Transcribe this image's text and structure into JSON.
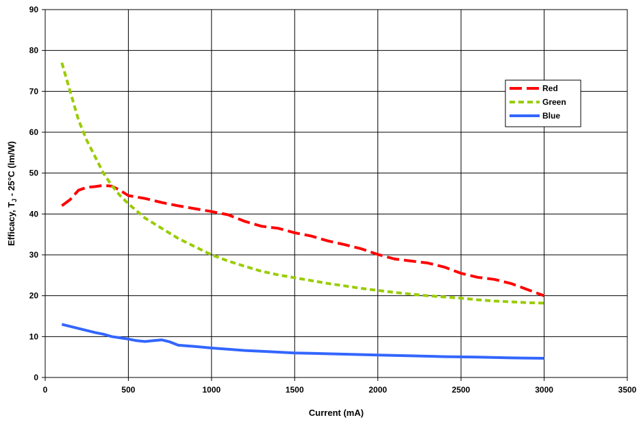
{
  "chart_data": {
    "type": "line",
    "xlabel": "Current (mA)",
    "ylabel_main": "Efficacy, T",
    "ylabel_sub": "J",
    "ylabel_tail": " - 25°C (lm/W)",
    "xlim": [
      0,
      3500
    ],
    "ylim": [
      0,
      90
    ],
    "xticks": [
      0,
      500,
      1000,
      1500,
      2000,
      2500,
      3000,
      3500
    ],
    "yticks": [
      0,
      10,
      20,
      30,
      40,
      50,
      60,
      70,
      80,
      90
    ],
    "grid": true,
    "legend_position": "right",
    "series": [
      {
        "name": "Red",
        "color": "#ff0000",
        "style": "dash",
        "x": [
          100,
          150,
          200,
          250,
          300,
          350,
          400,
          450,
          500,
          600,
          700,
          800,
          900,
          1000,
          1100,
          1200,
          1300,
          1400,
          1500,
          1600,
          1700,
          1800,
          1900,
          2000,
          2100,
          2200,
          2300,
          2400,
          2500,
          2600,
          2700,
          2800,
          2900,
          3000
        ],
        "values": [
          42.0,
          43.5,
          45.8,
          46.5,
          46.7,
          47.0,
          46.8,
          45.8,
          44.5,
          43.8,
          42.8,
          42.0,
          41.3,
          40.6,
          39.8,
          38.2,
          37.0,
          36.5,
          35.4,
          34.6,
          33.4,
          32.5,
          31.5,
          30.1,
          29.0,
          28.5,
          28.0,
          27.0,
          25.5,
          24.5,
          24.0,
          23.0,
          21.5,
          20.0
        ]
      },
      {
        "name": "Green",
        "color": "#99cc00",
        "style": "shortdash",
        "x": [
          100,
          150,
          200,
          250,
          300,
          350,
          400,
          450,
          500,
          600,
          700,
          800,
          900,
          1000,
          1100,
          1200,
          1300,
          1400,
          1500,
          1600,
          1700,
          1800,
          1900,
          2000,
          2100,
          2200,
          2300,
          2400,
          2500,
          2600,
          2700,
          2800,
          2900,
          3000
        ],
        "values": [
          77.0,
          70.0,
          63.0,
          58.0,
          54.0,
          50.0,
          47.0,
          44.5,
          42.5,
          39.0,
          36.5,
          34.0,
          32.0,
          30.0,
          28.5,
          27.2,
          26.0,
          25.1,
          24.4,
          23.7,
          23.0,
          22.4,
          21.8,
          21.3,
          20.8,
          20.4,
          20.0,
          19.7,
          19.4,
          19.0,
          18.7,
          18.5,
          18.3,
          18.2
        ]
      },
      {
        "name": "Blue",
        "color": "#3366ff",
        "style": "solid",
        "x": [
          100,
          150,
          200,
          250,
          300,
          350,
          400,
          450,
          500,
          550,
          600,
          650,
          700,
          750,
          800,
          900,
          1000,
          1100,
          1200,
          1300,
          1400,
          1500,
          1600,
          1700,
          1800,
          1900,
          2000,
          2200,
          2400,
          2600,
          2800,
          3000
        ],
        "values": [
          13.0,
          12.5,
          12.0,
          11.5,
          11.0,
          10.6,
          10.0,
          9.7,
          9.4,
          9.0,
          8.8,
          9.0,
          9.2,
          8.7,
          7.9,
          7.6,
          7.2,
          6.9,
          6.6,
          6.4,
          6.2,
          6.0,
          5.9,
          5.8,
          5.7,
          5.6,
          5.5,
          5.3,
          5.1,
          5.0,
          4.8,
          4.7
        ]
      }
    ]
  }
}
